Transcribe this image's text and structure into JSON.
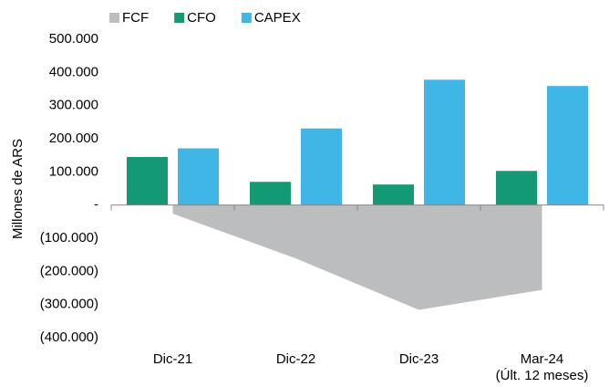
{
  "chart_data": {
    "type": "bar",
    "y_label": "Millones de ARS",
    "categories": [
      "Dic-21",
      "Dic-22",
      "Dic-23",
      "Mar-24\n(Últ. 12 meses)"
    ],
    "series": [
      {
        "name": "FCF",
        "type": "area",
        "color": "#bcbdbf",
        "values": [
          -26000,
          -161000,
          -316000,
          -256000
        ]
      },
      {
        "name": "CFO",
        "type": "bar",
        "color": "#139a74",
        "values": [
          145000,
          70000,
          62000,
          103000
        ]
      },
      {
        "name": "CAPEX",
        "type": "bar",
        "color": "#3fb6e5",
        "values": [
          171000,
          231000,
          378000,
          359000
        ]
      }
    ],
    "ylim": [
      -400000,
      500000
    ],
    "yticks": [
      {
        "value": 500000,
        "label": "500.000"
      },
      {
        "value": 400000,
        "label": "400.000"
      },
      {
        "value": 300000,
        "label": "300.000"
      },
      {
        "value": 200000,
        "label": "200.000"
      },
      {
        "value": 100000,
        "label": "100.000"
      },
      {
        "value": 0,
        "label": "-"
      },
      {
        "value": -100000,
        "label": "(100.000)"
      },
      {
        "value": -200000,
        "label": "(200.000)"
      },
      {
        "value": -300000,
        "label": "(300.000)"
      },
      {
        "value": -400000,
        "label": "(400.000)"
      }
    ],
    "legend": "top"
  }
}
